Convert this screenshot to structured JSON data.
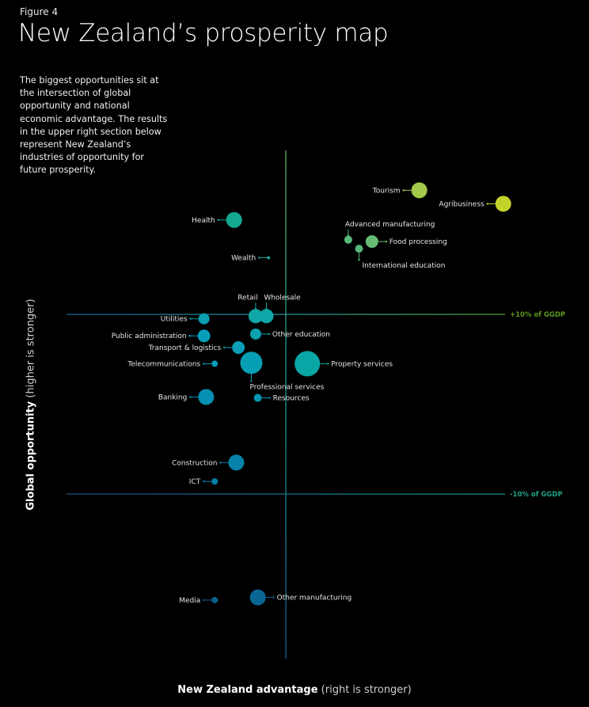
{
  "figure_label": "Figure 4",
  "title": "New Zealand’s prosperity map",
  "intro": "The biggest opportunities sit at the intersection of global opportunity and national economic advantage. The results in the upper right section below represent New Zealand’s industries of opportunity for future prosperity.",
  "chart_data": {
    "type": "scatter",
    "title": "New Zealand’s prosperity map",
    "xlabel_bold": "New Zealand advantage",
    "xlabel_light": "(right is stronger)",
    "ylabel_bold": "Global opportunity",
    "ylabel_light": "(higher is stronger)",
    "x_range": [
      -100,
      100
    ],
    "y_range": [
      -30,
      20
    ],
    "reference_lines": [
      {
        "axis": "y",
        "value": 10,
        "label": "+10% of GGDP",
        "color": "#5e9a1e"
      },
      {
        "axis": "y",
        "value": -10,
        "label": "-10% of GGDP",
        "color": "#1fa384"
      },
      {
        "axis": "x",
        "value": 0,
        "label": ""
      }
    ],
    "points": [
      {
        "name": "Tourism",
        "x": 62,
        "y": 23.8,
        "size": 10,
        "color": "#a3c84a",
        "label_side": "left"
      },
      {
        "name": "Agribusiness",
        "x": 101,
        "y": 22.3,
        "size": 10,
        "color": "#c2d42a",
        "label_side": "left"
      },
      {
        "name": "Health",
        "x": -24,
        "y": 20.5,
        "size": 10,
        "color": "#14a892",
        "label_side": "left"
      },
      {
        "name": "Wealth",
        "x": -8,
        "y": 16.3,
        "size": 2,
        "color": "#1aa596",
        "label_side": "left"
      },
      {
        "name": "Advanced manufacturing",
        "x": 29,
        "y": 18.3,
        "size": 5,
        "color": "#58b877",
        "label_side": "top"
      },
      {
        "name": "Food processing",
        "x": 40,
        "y": 18.1,
        "size": 8,
        "color": "#66bb73",
        "label_side": "right"
      },
      {
        "name": "International education",
        "x": 34,
        "y": 17.3,
        "size": 5,
        "color": "#55b67a",
        "label_side": "bottom"
      },
      {
        "name": "Retail",
        "x": -14,
        "y": 9.8,
        "size": 9,
        "color": "#0ea6a6",
        "label_side": "top"
      },
      {
        "name": "Wholesale",
        "x": -9,
        "y": 9.8,
        "size": 9,
        "color": "#0ea6a6",
        "label_side": "top"
      },
      {
        "name": "Utilities",
        "x": -38,
        "y": 9.5,
        "size": 7,
        "color": "#0a9fb3",
        "label_side": "left"
      },
      {
        "name": "Other education",
        "x": -14,
        "y": 7.8,
        "size": 7,
        "color": "#0aa2ae",
        "label_side": "right"
      },
      {
        "name": "Public administration",
        "x": -38,
        "y": 7.6,
        "size": 8,
        "color": "#089db8",
        "label_side": "left"
      },
      {
        "name": "Transport & logistics",
        "x": -22,
        "y": 6.3,
        "size": 8,
        "color": "#0a9fb4",
        "label_side": "left"
      },
      {
        "name": "Telecommunications",
        "x": -33,
        "y": 4.5,
        "size": 4,
        "color": "#089bb8",
        "label_side": "left"
      },
      {
        "name": "Professional services",
        "x": -16,
        "y": 4.6,
        "size": 14,
        "color": "#079fb3",
        "label_side": "bottom"
      },
      {
        "name": "Property services",
        "x": 10,
        "y": 4.5,
        "size": 16,
        "color": "#0aa6a6",
        "label_side": "right"
      },
      {
        "name": "Banking",
        "x": -37,
        "y": 0.8,
        "size": 10,
        "color": "#0890b3",
        "label_side": "left"
      },
      {
        "name": "Resources",
        "x": -13,
        "y": 0.7,
        "size": 5,
        "color": "#0895b3",
        "label_side": "right"
      },
      {
        "name": "Construction",
        "x": -23,
        "y": -6.5,
        "size": 10,
        "color": "#0782a8",
        "label_side": "left"
      },
      {
        "name": "ICT",
        "x": -33,
        "y": -8.6,
        "size": 4,
        "color": "#0780a8",
        "label_side": "left"
      },
      {
        "name": "Media",
        "x": -33,
        "y": -21.8,
        "size": 4,
        "color": "#0a5f8f",
        "label_side": "left"
      },
      {
        "name": "Other manufacturing",
        "x": -13,
        "y": -21.5,
        "size": 10,
        "color": "#0a6694",
        "label_side": "right"
      }
    ]
  }
}
